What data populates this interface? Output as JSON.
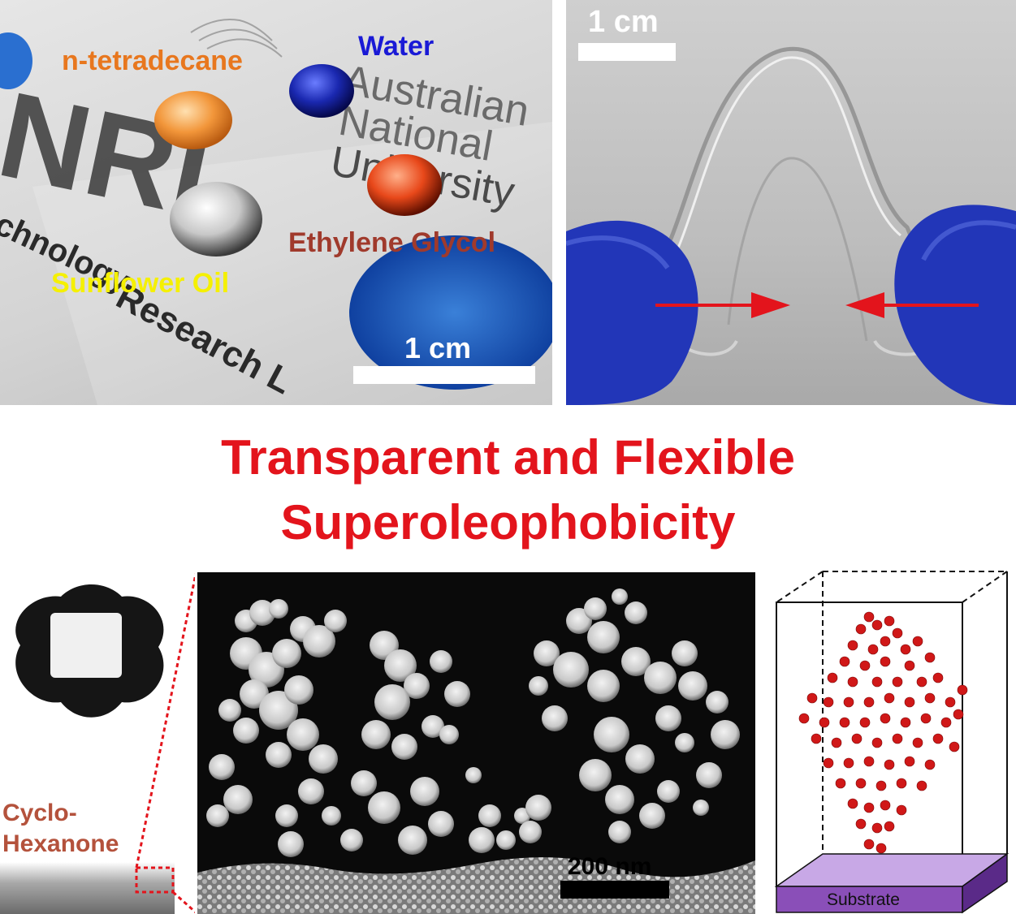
{
  "panel_top_left": {
    "labels": {
      "n_tetradecane": "n-tetradecane",
      "water": "Water",
      "ethylene_glycol": "Ethylene Glycol",
      "sunflower_oil": "Sunflower Oil"
    },
    "scale_bar": "1 cm",
    "background_text": {
      "australian": "Australian",
      "national": "National",
      "university": "University",
      "nrl": "NRL",
      "technology": "chnology",
      "research": "Research L"
    },
    "colors": {
      "n_tetradecane": "#e8771e",
      "water": "#1a1ad6",
      "ethylene_glycol": "#a03a2c",
      "sunflower_oil": "#f5f000"
    }
  },
  "panel_top_right": {
    "scale_bar": "1 cm",
    "arrow_color": "#e3141c"
  },
  "title": {
    "line1": "Transparent and Flexible",
    "line2": "Superoleophobicity",
    "color": "#e3141c"
  },
  "panel_bottom_left": {
    "label_line1": "Cyclo-",
    "label_line2": "Hexanone",
    "label_color": "#b4523c"
  },
  "panel_bottom_center": {
    "scale_bar": "200 nm"
  },
  "panel_bottom_right": {
    "substrate_label": "Substrate",
    "substrate_color": "#8a4fb8",
    "particle_color": "#d01818"
  }
}
